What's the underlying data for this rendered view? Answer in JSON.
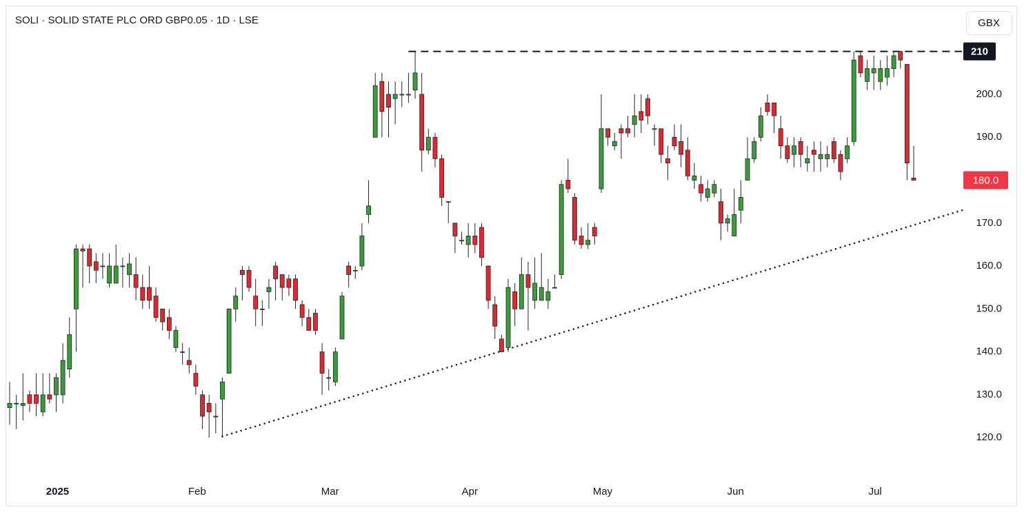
{
  "chart_data": {
    "type": "candlestick",
    "title": "SOLI · SOLID STATE PLC ORD GBP0.05 · 1D · LSE",
    "currency": "GBX",
    "categories": [
      null,
      null,
      null,
      null,
      null,
      null,
      null,
      "2025",
      null,
      null,
      null,
      null,
      null,
      null,
      null,
      null,
      null,
      null,
      null,
      null,
      null,
      null,
      null,
      null,
      null,
      null,
      null,
      null,
      "Feb",
      null,
      null,
      null,
      null,
      null,
      null,
      null,
      null,
      null,
      null,
      null,
      null,
      null,
      null,
      null,
      null,
      null,
      null,
      null,
      "Mar",
      null,
      null,
      null,
      null,
      null,
      null,
      null,
      null,
      null,
      null,
      null,
      null,
      null,
      null,
      null,
      null,
      null,
      null,
      null,
      null,
      "Apr",
      null,
      null,
      null,
      null,
      null,
      null,
      null,
      null,
      null,
      null,
      null,
      null,
      null,
      null,
      null,
      null,
      null,
      null,
      null,
      "May",
      null,
      null,
      null,
      null,
      null,
      null,
      null,
      null,
      null,
      null,
      null,
      null,
      null,
      null,
      null,
      null,
      null,
      null,
      null,
      "Jun",
      null,
      null,
      null,
      null,
      null,
      null,
      null,
      null,
      null,
      null,
      null,
      null,
      null,
      null,
      null,
      null,
      null,
      null,
      null,
      null,
      "Jul",
      null,
      null,
      null,
      null,
      null,
      null
    ],
    "open": [
      127,
      128,
      127.5,
      130,
      130,
      126,
      130,
      130,
      130,
      136,
      150,
      164,
      164,
      161,
      160,
      156,
      156,
      160,
      158,
      158,
      155,
      155,
      153,
      150,
      148,
      141,
      140,
      138,
      135,
      130,
      128,
      125,
      129,
      135,
      150,
      159,
      159,
      153,
      150,
      154,
      160,
      158,
      157,
      157,
      151,
      148,
      149,
      140,
      134,
      133,
      143,
      160,
      159,
      160,
      172,
      190,
      203,
      200,
      199,
      200,
      200,
      201,
      200,
      187,
      190,
      185,
      175,
      170,
      166,
      165,
      167,
      169,
      160,
      151,
      143,
      141,
      154,
      150,
      158,
      152,
      152,
      152,
      155,
      158,
      180,
      176,
      167,
      165,
      169,
      178,
      192,
      188,
      192,
      192,
      193,
      196,
      199,
      192,
      192,
      185,
      190,
      189,
      187,
      180,
      179,
      176,
      177,
      175,
      170,
      167,
      173,
      180,
      185,
      190,
      198,
      198,
      192,
      188,
      186,
      189,
      184,
      187,
      185,
      185,
      189,
      186,
      185,
      189,
      209,
      203,
      205,
      203,
      204,
      206,
      210,
      207,
      180.5
    ],
    "high": [
      133,
      130,
      135,
      131,
      135,
      135,
      135,
      135,
      142,
      148,
      165,
      165,
      165,
      163,
      163,
      163,
      165,
      162,
      163,
      162,
      158,
      160,
      155,
      150,
      150,
      146,
      142,
      141,
      137,
      131,
      130,
      128,
      134,
      150,
      155,
      160,
      160,
      157,
      152,
      157,
      161,
      158,
      158,
      158,
      152,
      150,
      150,
      142,
      136,
      141,
      154,
      161,
      160,
      170,
      180,
      205,
      205,
      203,
      203,
      203,
      205,
      210,
      205,
      192,
      191,
      186,
      175,
      170,
      168,
      170,
      170,
      170,
      160,
      153,
      144,
      157,
      156,
      162,
      161,
      162,
      163,
      157,
      158,
      180,
      185,
      177,
      169,
      170,
      170,
      200,
      192,
      191,
      193,
      195,
      200,
      200,
      200,
      193,
      192,
      188,
      193,
      193,
      190,
      184,
      181,
      180,
      180,
      178,
      172,
      178,
      180,
      190,
      190,
      197,
      200,
      198,
      195,
      190,
      190,
      190,
      188,
      189,
      189,
      188,
      190,
      187,
      190,
      210,
      210,
      208,
      209,
      208,
      209,
      210,
      210,
      207,
      188
    ],
    "low": [
      123,
      122,
      124,
      126,
      125,
      125,
      128,
      126,
      128,
      134,
      140,
      155,
      156,
      156,
      157,
      155,
      156,
      155,
      155,
      152,
      150,
      150,
      147,
      145,
      143,
      140,
      137,
      135,
      130,
      122,
      120,
      121,
      120,
      135,
      147,
      152,
      154,
      146,
      146,
      150,
      152,
      152,
      153,
      150,
      146,
      145,
      144,
      130,
      131,
      132,
      143,
      155,
      157,
      159,
      170,
      190,
      190,
      190,
      193,
      197,
      198,
      199,
      182,
      186,
      183,
      174,
      170,
      163,
      165,
      162,
      163,
      160,
      150,
      143,
      140,
      140,
      146,
      150,
      145,
      150,
      152,
      150,
      155,
      157,
      177,
      165,
      164,
      164,
      165,
      177,
      188,
      187,
      185,
      190,
      190,
      191,
      193,
      188,
      184,
      180,
      187,
      183,
      180,
      178,
      175,
      175,
      176,
      166,
      168,
      167,
      170,
      180,
      184,
      189,
      195,
      191,
      185,
      184,
      183,
      183,
      182,
      182,
      182,
      183,
      184,
      180,
      184,
      188,
      204,
      201,
      201,
      201,
      202,
      204,
      206,
      180,
      180
    ],
    "close": [
      128,
      128,
      128,
      128,
      128,
      130,
      129,
      134,
      138,
      144,
      164,
      163.5,
      160,
      159,
      160,
      160,
      160,
      160,
      160.5,
      155,
      152,
      152,
      148,
      147,
      145,
      145,
      140,
      137,
      132,
      125,
      126,
      125,
      133,
      150,
      153,
      158,
      155,
      150,
      150,
      155,
      157,
      155,
      155,
      152,
      148,
      145,
      145,
      135,
      134,
      140,
      153,
      158,
      159,
      167,
      174,
      202,
      196,
      197,
      200,
      200,
      200,
      205,
      187,
      190,
      185,
      176,
      175,
      167,
      166,
      167,
      165,
      162,
      152,
      146,
      140,
      155,
      150,
      158,
      155,
      156,
      155,
      154,
      155,
      179,
      178,
      166,
      165,
      166,
      167,
      192,
      190,
      189,
      191,
      191,
      195,
      194,
      195,
      192,
      186,
      184,
      188,
      186,
      181,
      181,
      177,
      178,
      179,
      170,
      171,
      172,
      176,
      185,
      189,
      195,
      196,
      195,
      188,
      185,
      188,
      186,
      185,
      186,
      186,
      186,
      185,
      182,
      188,
      208,
      205,
      206,
      206,
      206,
      206,
      209,
      208,
      184,
      180
    ],
    "up_color": "#3c9c3c",
    "down_color": "#e3262f",
    "ylim": [
      109.6,
      220.7
    ],
    "yticks": [
      {
        "value": 120,
        "label": "120.0"
      },
      {
        "value": 130,
        "label": "130.0"
      },
      {
        "value": 140,
        "label": "140.0"
      },
      {
        "value": 150,
        "label": "150.0"
      },
      {
        "value": 160,
        "label": "160.0"
      },
      {
        "value": 170,
        "label": "170.0"
      },
      {
        "value": 180,
        "label": "180.0"
      },
      {
        "value": 190,
        "label": "190.0"
      },
      {
        "value": 200,
        "label": "200.0"
      }
    ],
    "resistance": {
      "value": 210,
      "label": "210",
      "from": 60
    },
    "last_price": {
      "value": 180,
      "label": "180.0",
      "color": "#f23645"
    },
    "trendline": {
      "from": [
        32,
        120.3
      ],
      "to": [
        143.3,
        173
      ]
    }
  }
}
